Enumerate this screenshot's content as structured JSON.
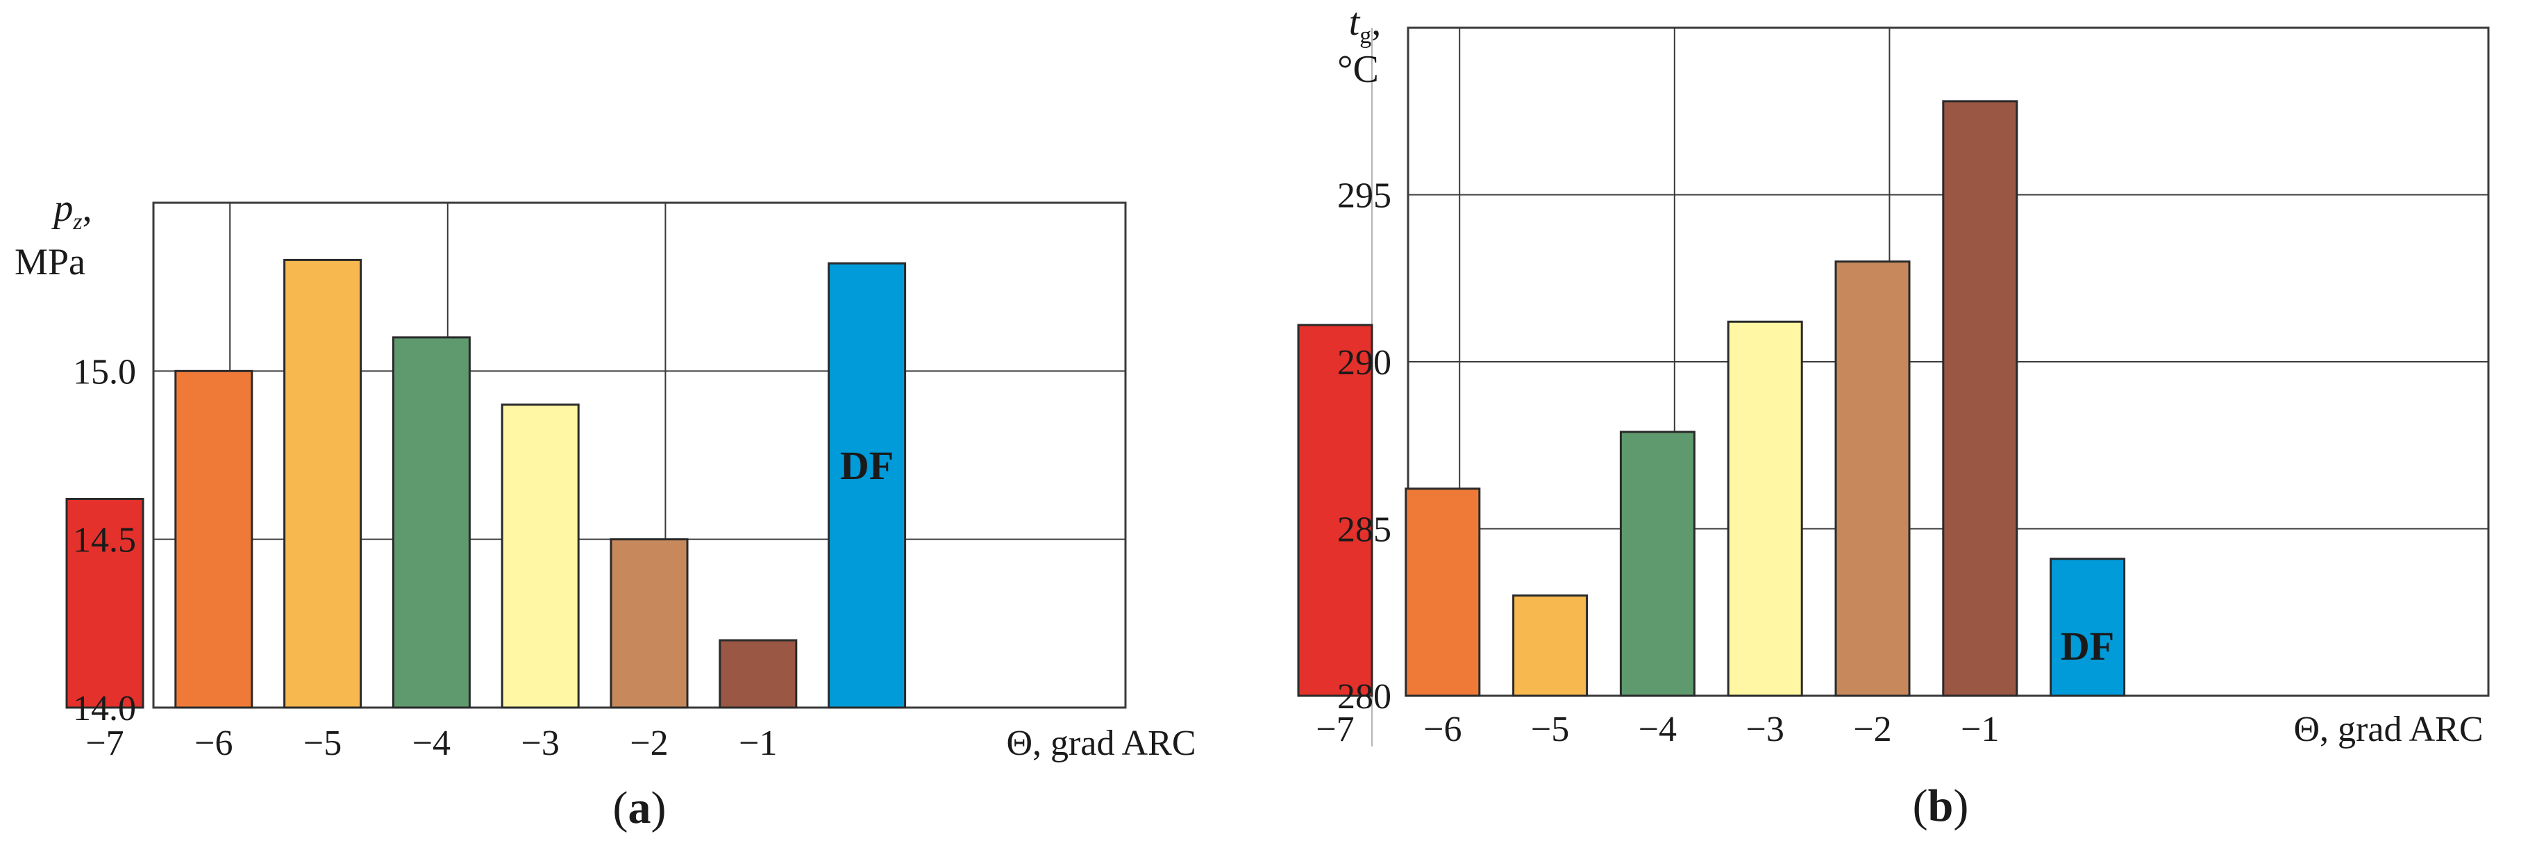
{
  "chart_data": [
    {
      "type": "bar",
      "panel_label": "(a)",
      "ylabel_var": "p",
      "ylabel_sub": "z",
      "ylabel_suffix": ",",
      "ylabel_unit": "MPa",
      "xlabel": "Θ, grad ARC",
      "ylim": [
        14.0,
        15.5
      ],
      "yticks": [
        "14.0",
        "14.5",
        "15.0"
      ],
      "ytick_values": [
        14.0,
        14.5,
        15.0
      ],
      "categories": [
        "−7",
        "−6",
        "−5",
        "−4",
        "−3",
        "−2",
        "−1",
        ""
      ],
      "values": [
        14.62,
        15.0,
        15.33,
        15.1,
        14.9,
        14.5,
        14.2,
        15.32
      ],
      "colors": [
        "#e4312b",
        "#ef7a38",
        "#f7b84f",
        "#5f9a6e",
        "#fff7a3",
        "#c7895c",
        "#9a5744",
        "#009bd8"
      ],
      "bar_labels": [
        "",
        "",
        "",
        "",
        "",
        "",
        "",
        "DF"
      ],
      "grid": true
    },
    {
      "type": "bar",
      "panel_label": "(b)",
      "ylabel_var": "t",
      "ylabel_sub": "g",
      "ylabel_suffix": ",",
      "ylabel_unit": "°C",
      "xlabel": "Θ, grad ARC",
      "ylim": [
        280,
        300
      ],
      "yticks": [
        "280",
        "285",
        "290",
        "295"
      ],
      "ytick_values": [
        280,
        285,
        290,
        295
      ],
      "categories": [
        "−7",
        "−6",
        "−5",
        "−4",
        "−3",
        "−2",
        "−1",
        ""
      ],
      "values": [
        291.1,
        286.2,
        283.0,
        287.9,
        291.2,
        293.0,
        297.8,
        284.1
      ],
      "colors": [
        "#e4312b",
        "#ef7a38",
        "#f7b84f",
        "#5f9a6e",
        "#fff7a3",
        "#c7895c",
        "#9a5744",
        "#009bd8"
      ],
      "bar_labels": [
        "",
        "",
        "",
        "",
        "",
        "",
        "",
        "DF"
      ],
      "grid": true
    }
  ]
}
